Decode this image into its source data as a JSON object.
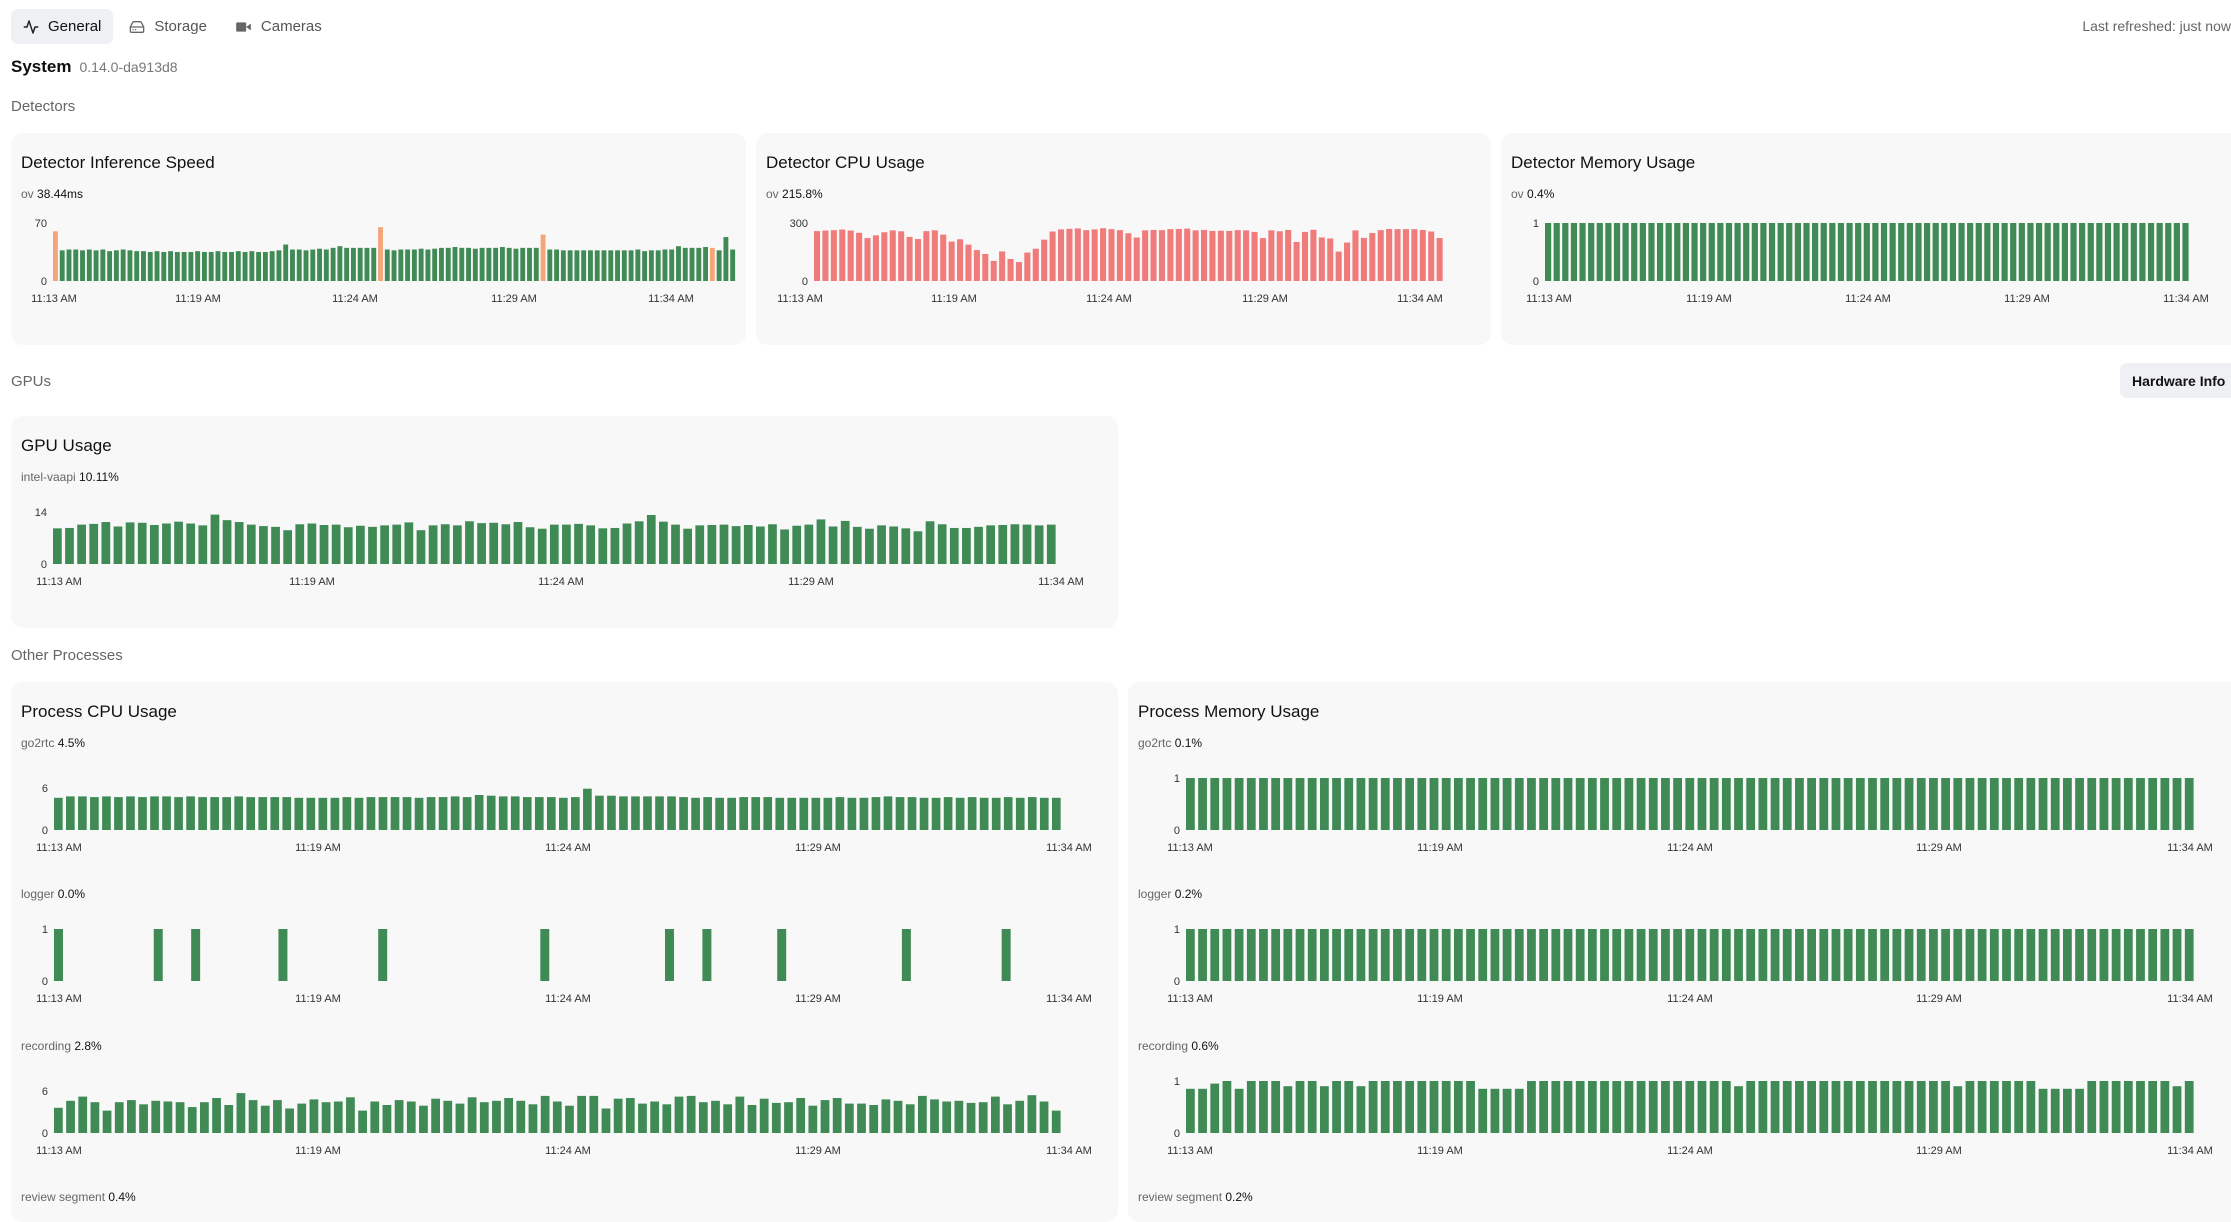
{
  "tabs": [
    {
      "label": "General",
      "icon": "activity-icon",
      "active": true
    },
    {
      "label": "Storage",
      "icon": "hard-drive-icon",
      "active": false
    },
    {
      "label": "Cameras",
      "icon": "video-icon",
      "active": false
    }
  ],
  "last_refreshed": "Last refreshed: just now",
  "system": {
    "title": "System",
    "version": "0.14.0-da913d8"
  },
  "sections": {
    "detectors": "Detectors",
    "gpus": "GPUs",
    "other": "Other Processes"
  },
  "hardware_info_label": "Hardware Info",
  "colors": {
    "green": "#3f8a55",
    "orange": "#f4a67a",
    "red": "#ef7b7b"
  },
  "time_labels": [
    "11:13 AM",
    "11:19 AM",
    "11:24 AM",
    "11:29 AM",
    "11:34 AM"
  ],
  "cards": {
    "detector_inference": {
      "title": "Detector Inference Speed"
    },
    "detector_cpu": {
      "title": "Detector CPU Usage"
    },
    "detector_memory": {
      "title": "Detector Memory Usage"
    },
    "gpu_usage": {
      "title": "GPU Usage"
    },
    "process_cpu": {
      "title": "Process CPU Usage"
    },
    "process_memory": {
      "title": "Process Memory Usage"
    }
  },
  "chart_data": [
    {
      "id": "inference",
      "type": "bar",
      "label": "ov",
      "value": "38.44ms",
      "ymax": "70",
      "ymin": "0",
      "ylim": [
        0,
        70
      ],
      "highlight_color": "orange",
      "values": [
        60,
        37,
        38,
        38,
        37,
        38,
        37,
        38,
        36,
        37,
        38,
        37,
        36,
        36,
        35,
        36,
        35,
        36,
        35,
        35,
        35,
        36,
        35,
        35,
        36,
        35,
        35,
        36,
        35,
        36,
        35,
        35,
        36,
        37,
        44,
        38,
        38,
        37,
        38,
        39,
        38,
        40,
        42,
        40,
        40,
        40,
        40,
        40,
        65,
        38,
        37,
        38,
        38,
        38,
        39,
        38,
        39,
        40,
        40,
        41,
        40,
        40,
        39,
        40,
        40,
        40,
        41,
        40,
        39,
        40,
        40,
        40,
        56,
        38,
        38,
        37,
        37,
        37,
        37,
        37,
        37,
        37,
        37,
        37,
        37,
        37,
        38,
        36,
        37,
        37,
        38,
        38,
        42,
        40,
        40,
        40,
        41,
        40,
        37,
        53,
        38
      ],
      "highlight_indices": [
        0,
        48,
        72,
        97
      ]
    },
    {
      "id": "detector_cpu",
      "type": "bar",
      "label": "ov",
      "value": "215.8%",
      "ymax": "300",
      "ymin": "0",
      "ylim": [
        0,
        300
      ],
      "values": [
        258,
        261,
        263,
        266,
        261,
        249,
        222,
        236,
        252,
        262,
        257,
        228,
        217,
        258,
        262,
        240,
        204,
        216,
        188,
        160,
        140,
        104,
        153,
        114,
        98,
        147,
        167,
        214,
        256,
        267,
        270,
        272,
        263,
        267,
        273,
        268,
        263,
        247,
        225,
        262,
        264,
        263,
        268,
        269,
        271,
        262,
        264,
        259,
        260,
        259,
        263,
        262,
        254,
        222,
        262,
        257,
        264,
        202,
        254,
        265,
        225,
        220,
        152,
        199,
        262,
        223,
        248,
        263,
        269,
        268,
        268,
        268,
        264,
        256,
        222
      ]
    },
    {
      "id": "detector_memory",
      "type": "bar",
      "label": "ov",
      "value": "0.4%",
      "ymax": "1",
      "ymin": "0",
      "ylim": [
        0,
        1
      ],
      "values": [
        1,
        1,
        1,
        1,
        1,
        1,
        1,
        1,
        1,
        1,
        1,
        1,
        1,
        1,
        1,
        1,
        1,
        1,
        1,
        1,
        1,
        1,
        1,
        1,
        1,
        1,
        1,
        1,
        1,
        1,
        1,
        1,
        1,
        1,
        1,
        1,
        1,
        1,
        1,
        1,
        1,
        1,
        1,
        1,
        1,
        1,
        1,
        1,
        1,
        1,
        1,
        1,
        1,
        1,
        1,
        1,
        1,
        1,
        1,
        1,
        1,
        1,
        1,
        1,
        1,
        1,
        1,
        1,
        1,
        1,
        1,
        1,
        1,
        1,
        1
      ]
    },
    {
      "id": "gpu",
      "type": "bar",
      "label": "intel-vaapi",
      "value": "10.11%",
      "ymax": "14",
      "ymin": "0",
      "ylim": [
        0,
        14
      ],
      "values": [
        9.6,
        9.7,
        10.6,
        10.8,
        11.3,
        10.1,
        11.2,
        11.1,
        10.5,
        10.9,
        11.4,
        10.9,
        10.4,
        13.3,
        11.8,
        11.3,
        10.6,
        10.2,
        10.0,
        9.1,
        10.7,
        10.9,
        10.5,
        10.6,
        9.9,
        10.3,
        10.0,
        10.4,
        10.6,
        11.2,
        9.1,
        10.4,
        10.7,
        10.4,
        11.5,
        11.0,
        11.1,
        10.7,
        11.3,
        9.9,
        9.5,
        10.6,
        10.6,
        10.8,
        10.4,
        9.6,
        9.7,
        10.9,
        11.5,
        13.2,
        11.4,
        10.6,
        9.5,
        10.4,
        10.5,
        10.6,
        10.2,
        10.5,
        10.1,
        10.7,
        9.3,
        10.3,
        10.6,
        12.0,
        10.1,
        11.6,
        10.0,
        9.5,
        10.4,
        10.1,
        9.6,
        8.8,
        11.5,
        10.7,
        9.7,
        9.7,
        10.0,
        10.4,
        10.5,
        10.7,
        10.6,
        10.4,
        10.6
      ]
    },
    {
      "id": "go2rtc_cpu",
      "type": "bar",
      "label": "go2rtc",
      "value": "4.5%",
      "ymax": "6",
      "ymin": "0",
      "ylim": [
        0,
        6
      ],
      "values": [
        4.6,
        4.8,
        4.8,
        4.7,
        4.8,
        4.7,
        4.8,
        4.7,
        4.8,
        4.8,
        4.7,
        4.8,
        4.7,
        4.7,
        4.7,
        4.8,
        4.7,
        4.7,
        4.7,
        4.7,
        4.6,
        4.6,
        4.6,
        4.6,
        4.7,
        4.6,
        4.7,
        4.7,
        4.7,
        4.7,
        4.6,
        4.7,
        4.7,
        4.8,
        4.7,
        5.0,
        4.9,
        4.8,
        4.8,
        4.7,
        4.7,
        4.7,
        4.6,
        4.7,
        5.9,
        4.9,
        4.9,
        4.8,
        4.8,
        4.8,
        4.8,
        4.8,
        4.7,
        4.6,
        4.7,
        4.6,
        4.6,
        4.7,
        4.7,
        4.7,
        4.6,
        4.6,
        4.6,
        4.6,
        4.6,
        4.7,
        4.6,
        4.6,
        4.7,
        4.8,
        4.7,
        4.7,
        4.6,
        4.6,
        4.7,
        4.6,
        4.7,
        4.6,
        4.6,
        4.7,
        4.6,
        4.7,
        4.6,
        4.6
      ]
    },
    {
      "id": "logger_cpu",
      "type": "bar",
      "label": "logger",
      "value": "0.0%",
      "ymax": "1",
      "ymin": "0",
      "ylim": [
        0,
        1
      ],
      "values": [
        1,
        0,
        0,
        0,
        0,
        0,
        0,
        0,
        1,
        0,
        0,
        1,
        0,
        0,
        0,
        0,
        0,
        0,
        1,
        0,
        0,
        0,
        0,
        0,
        0,
        0,
        1,
        0,
        0,
        0,
        0,
        0,
        0,
        0,
        0,
        0,
        0,
        0,
        0,
        1,
        0,
        0,
        0,
        0,
        0,
        0,
        0,
        0,
        0,
        1,
        0,
        0,
        1,
        0,
        0,
        0,
        0,
        0,
        1,
        0,
        0,
        0,
        0,
        0,
        0,
        0,
        0,
        0,
        1,
        0,
        0,
        0,
        0,
        0,
        0,
        0,
        1,
        0,
        0,
        0,
        0
      ]
    },
    {
      "id": "recording_cpu",
      "type": "bar",
      "label": "recording",
      "value": "2.8%",
      "ymax": "6",
      "ymin": "0",
      "ylim": [
        0,
        6
      ],
      "values": [
        3.6,
        4.6,
        5.2,
        4.4,
        3.2,
        4.4,
        4.7,
        4.1,
        4.6,
        4.5,
        4.4,
        3.7,
        4.4,
        5.0,
        4.0,
        5.7,
        4.7,
        3.9,
        4.7,
        3.5,
        4.2,
        4.8,
        4.4,
        4.5,
        5.1,
        3.2,
        4.5,
        4.0,
        4.7,
        4.5,
        3.9,
        4.9,
        4.6,
        4.2,
        5.1,
        4.4,
        4.6,
        5.0,
        4.6,
        4.1,
        5.3,
        4.5,
        3.9,
        5.3,
        5.3,
        3.5,
        4.9,
        5.0,
        4.2,
        4.5,
        4.1,
        5.2,
        5.3,
        4.4,
        4.6,
        4.1,
        5.2,
        4.0,
        4.9,
        4.3,
        4.4,
        5.0,
        3.9,
        4.7,
        5.0,
        4.2,
        4.2,
        4.0,
        4.8,
        4.6,
        4.1,
        5.3,
        4.8,
        4.5,
        4.6,
        4.3,
        4.4,
        5.2,
        4.1,
        4.6,
        5.4,
        4.5,
        3.2
      ]
    },
    {
      "id": "go2rtc_mem",
      "type": "bar",
      "label": "go2rtc",
      "value": "0.1%",
      "ymax": "1",
      "ymin": "0",
      "ylim": [
        0,
        1
      ],
      "values": [
        1,
        1,
        1,
        1,
        1,
        1,
        1,
        1,
        1,
        1,
        1,
        1,
        1,
        1,
        1,
        1,
        1,
        1,
        1,
        1,
        1,
        1,
        1,
        1,
        1,
        1,
        1,
        1,
        1,
        1,
        1,
        1,
        1,
        1,
        1,
        1,
        1,
        1,
        1,
        1,
        1,
        1,
        1,
        1,
        1,
        1,
        1,
        1,
        1,
        1,
        1,
        1,
        1,
        1,
        1,
        1,
        1,
        1,
        1,
        1,
        1,
        1,
        1,
        1,
        1,
        1,
        1,
        1,
        1,
        1,
        1,
        1,
        1,
        1,
        1,
        1,
        1,
        1,
        1,
        1,
        1,
        1,
        1
      ]
    },
    {
      "id": "logger_mem",
      "type": "bar",
      "label": "logger",
      "value": "0.2%",
      "ymax": "1",
      "ymin": "0",
      "ylim": [
        0,
        1
      ],
      "values": [
        1,
        1,
        1,
        1,
        1,
        1,
        1,
        1,
        1,
        1,
        1,
        1,
        1,
        1,
        1,
        1,
        1,
        1,
        1,
        1,
        1,
        1,
        1,
        1,
        1,
        1,
        1,
        1,
        1,
        1,
        1,
        1,
        1,
        1,
        1,
        1,
        1,
        1,
        1,
        1,
        1,
        1,
        1,
        1,
        1,
        1,
        1,
        1,
        1,
        1,
        1,
        1,
        1,
        1,
        1,
        1,
        1,
        1,
        1,
        1,
        1,
        1,
        1,
        1,
        1,
        1,
        1,
        1,
        1,
        1,
        1,
        1,
        1,
        1,
        1,
        1,
        1,
        1,
        1,
        1,
        1,
        1,
        1
      ]
    },
    {
      "id": "recording_mem",
      "type": "bar",
      "label": "recording",
      "value": "0.6%",
      "ymax": "1",
      "ymin": "0",
      "ylim": [
        0,
        1
      ],
      "values": [
        0.85,
        0.85,
        0.95,
        1,
        0.85,
        1,
        1,
        1,
        0.9,
        1,
        1,
        0.9,
        1,
        1,
        0.9,
        1,
        1,
        1,
        1,
        1,
        1,
        1,
        1,
        1,
        0.85,
        0.85,
        0.85,
        0.85,
        1,
        1,
        1,
        1,
        1,
        1,
        1,
        1,
        1,
        1,
        1,
        1,
        1,
        1,
        1,
        1,
        1,
        0.9,
        1,
        1,
        1,
        1,
        1,
        1,
        1,
        1,
        1,
        1,
        1,
        1,
        1,
        1,
        1,
        1,
        1,
        0.9,
        1,
        1,
        1,
        1,
        1,
        1,
        0.85,
        0.85,
        0.85,
        0.85,
        1,
        1,
        1,
        1,
        1,
        1,
        1,
        0.9,
        1
      ]
    },
    {
      "id": "review_cpu",
      "type": "bar",
      "label": "review segment",
      "value": "0.4%"
    },
    {
      "id": "review_mem",
      "type": "bar",
      "label": "review segment",
      "value": "0.2%"
    }
  ]
}
